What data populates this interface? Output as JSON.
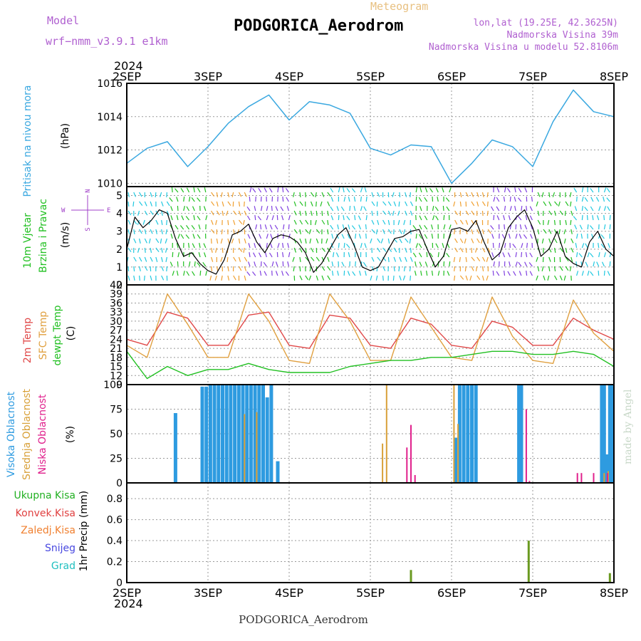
{
  "header": {
    "model_label": "Model",
    "model_name": "wrf−nmm_v3.9.1  e1km",
    "meteogram_label": "Meteogram",
    "station": "PODGORICA_Aerodrom",
    "lonlat": "lon,lat (19.25E, 42.3625N)",
    "elevation": "Nadmorska Visina 39m",
    "model_elevation": "Nadmorska Visina u modelu 52.8106m",
    "footer_station": "PODGORICA_Aerodrom",
    "watermark": "made by Angel",
    "year": "2024"
  },
  "colors": {
    "pressure": "#3aa8e0",
    "wind_label": "#22c022",
    "direction": "#a040c8",
    "temp2m": "#e04848",
    "sfc": "#e0a040",
    "dewpt": "#22c022",
    "high_cloud": "#2e9be0",
    "mid_cloud": "#d8a038",
    "low_cloud": "#e0208c",
    "total_precip": "#22b022",
    "conv_precip": "#e04040",
    "frozen_precip": "#f08030",
    "snow": "#4848e0",
    "hail": "#20c0c0",
    "precip_bar": "#6a9a20"
  },
  "chart_data": [
    {
      "type": "line",
      "panel": "pressure",
      "ylabel": "Pritisak na nivou mora",
      "unit": "(hPa)",
      "x_ticks": [
        "2SEP",
        "3SEP",
        "4SEP",
        "5SEP",
        "6SEP",
        "7SEP",
        "8SEP"
      ],
      "ylim": [
        1009.8,
        1016
      ],
      "yticks": [
        1010,
        1012,
        1014,
        1016
      ],
      "x": [
        0,
        0.25,
        0.5,
        0.75,
        1,
        1.25,
        1.5,
        1.75,
        2,
        2.25,
        2.5,
        2.75,
        3,
        3.25,
        3.5,
        3.75,
        4,
        4.25,
        4.5,
        4.75,
        5,
        5.25,
        5.5,
        5.75,
        6
      ],
      "values": [
        1011.2,
        1012.1,
        1012.5,
        1011.0,
        1012.2,
        1013.6,
        1014.6,
        1015.3,
        1013.8,
        1014.9,
        1014.7,
        1014.2,
        1012.1,
        1011.7,
        1012.3,
        1012.2,
        1010.0,
        1011.2,
        1012.6,
        1012.2,
        1011.0,
        1013.7,
        1015.6,
        1014.3,
        1014.0
      ]
    },
    {
      "type": "line",
      "panel": "wind",
      "ylabel": "10m Vjetar",
      "ylabel2": "Brzina i Pravac",
      "unit": "(m/s)",
      "direction_key": [
        "N",
        "W",
        "E",
        "S"
      ],
      "ylim": [
        0,
        5.5
      ],
      "yticks": [
        0,
        1,
        2,
        3,
        4,
        5
      ],
      "x": [
        0,
        0.1,
        0.2,
        0.3,
        0.4,
        0.5,
        0.6,
        0.7,
        0.8,
        0.9,
        1,
        1.1,
        1.2,
        1.3,
        1.4,
        1.5,
        1.6,
        1.7,
        1.8,
        1.9,
        2,
        2.1,
        2.2,
        2.3,
        2.4,
        2.5,
        2.6,
        2.7,
        2.8,
        2.9,
        3,
        3.1,
        3.2,
        3.3,
        3.4,
        3.5,
        3.6,
        3.7,
        3.8,
        3.9,
        4,
        4.1,
        4.2,
        4.3,
        4.4,
        4.5,
        4.6,
        4.7,
        4.8,
        4.9,
        5,
        5.1,
        5.2,
        5.3,
        5.4,
        5.5,
        5.6,
        5.7,
        5.8,
        5.9,
        6
      ],
      "values": [
        2.0,
        3.8,
        3.2,
        3.6,
        4.2,
        4.0,
        2.6,
        1.6,
        1.8,
        1.2,
        0.8,
        0.6,
        1.4,
        2.8,
        3.0,
        3.4,
        2.4,
        1.8,
        2.6,
        2.8,
        2.7,
        2.4,
        1.8,
        0.7,
        1.2,
        2.0,
        2.8,
        3.2,
        2.2,
        1.0,
        0.8,
        1.0,
        1.8,
        2.6,
        2.7,
        3.0,
        3.1,
        2.0,
        1.0,
        1.6,
        3.1,
        3.2,
        3.0,
        3.6,
        2.4,
        1.4,
        1.8,
        3.2,
        3.8,
        4.2,
        3.2,
        1.6,
        2.0,
        3.0,
        1.6,
        1.2,
        1.0,
        2.4,
        3.0,
        2.0,
        1.6
      ]
    },
    {
      "type": "line",
      "panel": "temperature",
      "ylabel": "2m Temp",
      "ylabel2": "SFC Temp",
      "ylabel3": "dewpt Temp",
      "unit": "(C)",
      "ylim": [
        9,
        42
      ],
      "yticks": [
        9,
        12,
        15,
        18,
        21,
        24,
        27,
        30,
        33,
        36,
        39,
        42
      ],
      "x": [
        0,
        0.25,
        0.5,
        0.75,
        1,
        1.25,
        1.5,
        1.75,
        2,
        2.25,
        2.5,
        2.75,
        3,
        3.25,
        3.5,
        3.75,
        4,
        4.25,
        4.5,
        4.75,
        5,
        5.25,
        5.5,
        5.75,
        6
      ],
      "series": [
        {
          "name": "2m Temp",
          "values": [
            24,
            22,
            33,
            31,
            22,
            22,
            32,
            33,
            22,
            21,
            32,
            31,
            22,
            21,
            31,
            29,
            22,
            21,
            30,
            28,
            22,
            22,
            31,
            27,
            24
          ]
        },
        {
          "name": "SFC Temp",
          "values": [
            22,
            18,
            39,
            29,
            18,
            18,
            39,
            30,
            17,
            16,
            39,
            30,
            17,
            17,
            38,
            28,
            18,
            17,
            38,
            25,
            17,
            16,
            37,
            26,
            20
          ]
        },
        {
          "name": "dewpt Temp",
          "values": [
            20,
            11,
            15,
            12,
            14,
            14,
            16,
            14,
            13,
            13,
            13,
            15,
            16,
            17,
            17,
            18,
            18,
            19,
            20,
            20,
            19,
            19,
            20,
            19,
            15
          ]
        }
      ]
    },
    {
      "type": "bar",
      "panel": "clouds",
      "ylabel": "Visoka Oblacnost",
      "ylabel2": "Srednja Oblacnost",
      "ylabel3": "Niska Oblacnost",
      "unit": "(%)",
      "ylim": [
        0,
        100
      ],
      "yticks": [
        0,
        25,
        50,
        75,
        100
      ],
      "series": [
        {
          "name": "Visoka Oblacnost",
          "points": [
            [
              0.6,
              71
            ],
            [
              0.93,
              98
            ],
            [
              0.98,
              98
            ],
            [
              1.03,
              100
            ],
            [
              1.08,
              100
            ],
            [
              1.13,
              100
            ],
            [
              1.18,
              100
            ],
            [
              1.23,
              100
            ],
            [
              1.28,
              100
            ],
            [
              1.33,
              100
            ],
            [
              1.38,
              100
            ],
            [
              1.43,
              100
            ],
            [
              1.48,
              100
            ],
            [
              1.53,
              100
            ],
            [
              1.58,
              100
            ],
            [
              1.63,
              100
            ],
            [
              1.68,
              100
            ],
            [
              1.73,
              87
            ],
            [
              1.78,
              100
            ],
            [
              1.86,
              22
            ],
            [
              4.05,
              46
            ],
            [
              4.1,
              100
            ],
            [
              4.15,
              100
            ],
            [
              4.2,
              100
            ],
            [
              4.25,
              100
            ],
            [
              4.3,
              100
            ],
            [
              4.83,
              100
            ],
            [
              4.86,
              100
            ],
            [
              5.85,
              100
            ],
            [
              5.88,
              100
            ],
            [
              5.91,
              29
            ],
            [
              5.95,
              100
            ],
            [
              5.98,
              100
            ]
          ]
        },
        {
          "name": "Srednja Oblacnost",
          "points": [
            [
              1.45,
              70
            ],
            [
              1.6,
              72
            ],
            [
              3.15,
              40
            ],
            [
              3.2,
              100
            ],
            [
              4.03,
              100
            ],
            [
              4.08,
              60
            ],
            [
              5.88,
              10
            ],
            [
              5.93,
              12
            ]
          ]
        },
        {
          "name": "Niska Oblacnost",
          "points": [
            [
              3.45,
              36
            ],
            [
              3.5,
              59
            ],
            [
              3.55,
              8
            ],
            [
              4.92,
              75
            ],
            [
              4.96,
              2
            ],
            [
              5.55,
              10
            ],
            [
              5.6,
              10
            ],
            [
              5.75,
              10
            ],
            [
              5.92,
              10
            ]
          ]
        }
      ]
    },
    {
      "type": "bar",
      "panel": "precipitation",
      "ylabel": "1hr Precip",
      "unit": "(mm)",
      "ylim": [
        0,
        0.95
      ],
      "yticks": [
        0,
        0.2,
        0.4,
        0.6,
        0.8
      ],
      "legend": [
        "Ukupna  Kisa",
        "Konvek.Kisa",
        "Zaledj.Kisa",
        "Snijeg",
        "Grad"
      ],
      "x": [
        3.5,
        4.95,
        5.95
      ],
      "values": [
        0.12,
        0.4,
        0.09
      ]
    }
  ]
}
